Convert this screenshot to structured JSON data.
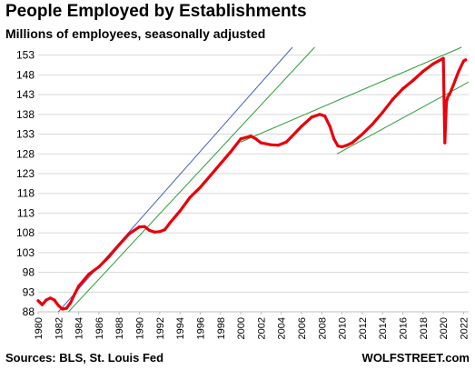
{
  "chart_data": {
    "type": "line",
    "title": "People Employed by Establishments",
    "subtitle": "Millions of employees, seasonally adjusted",
    "xlabel": "",
    "ylabel": "",
    "xlim": [
      1980,
      2022.5
    ],
    "ylim": [
      88,
      155
    ],
    "grid": "horizontal",
    "y_ticks": [
      "88",
      "93",
      "98",
      "103",
      "108",
      "113",
      "118",
      "123",
      "128",
      "133",
      "138",
      "143",
      "148",
      "153"
    ],
    "x_ticks": [
      "1980",
      "1982",
      "1984",
      "1986",
      "1988",
      "1990",
      "1992",
      "1994",
      "1996",
      "1998",
      "2000",
      "2002",
      "2004",
      "2006",
      "2008",
      "2010",
      "2012",
      "2014",
      "2016",
      "2018",
      "2020",
      "2022"
    ],
    "series": [
      {
        "color": "#e8000b",
        "x": [
          1980.0,
          1980.4,
          1980.8,
          1981.2,
          1981.6,
          1982.0,
          1982.4,
          1982.8,
          1983.2,
          1983.6,
          1984.0,
          1984.5,
          1985.0,
          1986.0,
          1987.0,
          1988.0,
          1989.0,
          1990.0,
          1990.5,
          1991.0,
          1991.5,
          1992.0,
          1992.5,
          1993.0,
          1994.0,
          1995.0,
          1996.0,
          1997.0,
          1998.0,
          1999.0,
          2000.0,
          2001.0,
          2001.5,
          2002.0,
          2003.0,
          2003.7,
          2004.5,
          2005.0,
          2006.0,
          2007.0,
          2007.8,
          2008.3,
          2008.8,
          2009.2,
          2009.6,
          2010.0,
          2010.5,
          2011.0,
          2012.0,
          2013.0,
          2014.0,
          2015.0,
          2016.0,
          2017.0,
          2018.0,
          2019.0,
          2020.0,
          2020.15,
          2020.3,
          2020.45,
          2020.6,
          2021.0,
          2021.5,
          2022.0,
          2022.2
        ],
        "y": [
          90.8,
          89.8,
          91.0,
          91.5,
          91.0,
          89.6,
          88.7,
          88.9,
          90.3,
          92.5,
          94.5,
          96.0,
          97.5,
          99.4,
          102.0,
          105.0,
          107.8,
          109.5,
          109.6,
          108.6,
          108.2,
          108.3,
          108.8,
          110.5,
          113.5,
          117.0,
          119.5,
          122.5,
          125.5,
          128.5,
          131.8,
          132.5,
          131.8,
          130.8,
          130.3,
          130.2,
          131.0,
          132.3,
          135.0,
          137.3,
          138.0,
          137.6,
          135.0,
          131.8,
          130.0,
          129.8,
          130.2,
          130.8,
          133.0,
          135.5,
          138.5,
          141.8,
          144.5,
          146.6,
          148.9,
          150.8,
          152.2,
          130.8,
          141.0,
          142.5,
          143.0,
          145.5,
          148.8,
          151.5,
          151.8
        ]
      }
    ],
    "trend_lines": [
      {
        "color": "#4a5fc1",
        "x": [
          1982.0,
          2005.1
        ],
        "y": [
          88.0,
          155.0
        ]
      },
      {
        "color": "#2e9e3a",
        "x": [
          1983.0,
          2007.3
        ],
        "y": [
          88.0,
          155.0
        ]
      },
      {
        "color": "#2e9e3a",
        "x": [
          2000.0,
          2021.8
        ],
        "y": [
          131.0,
          155.0
        ]
      },
      {
        "color": "#2e9e3a",
        "x": [
          2009.5,
          2022.5
        ],
        "y": [
          128.0,
          146.2
        ]
      }
    ]
  },
  "footer": {
    "source": "Sources: BLS, St. Louis Fed",
    "brand": "WOLFSTREET.com"
  }
}
